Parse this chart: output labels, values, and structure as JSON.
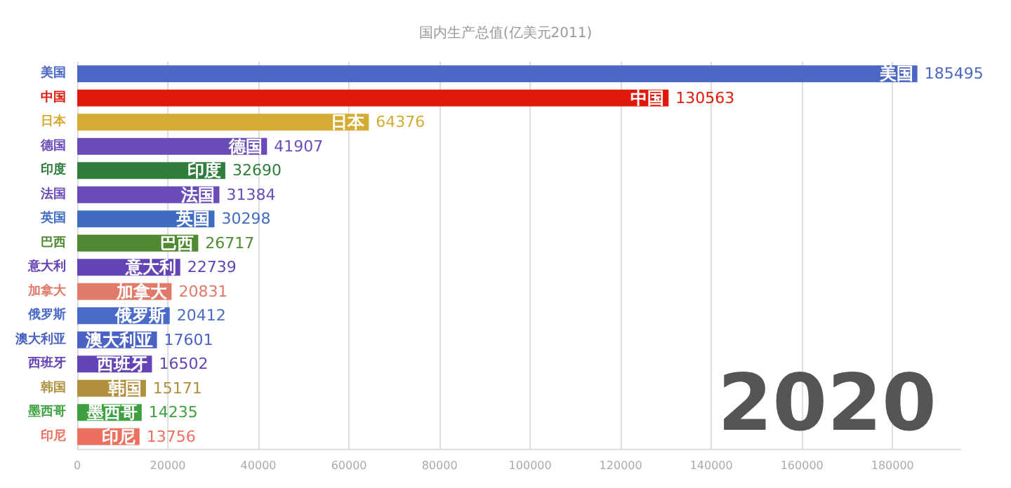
{
  "chart_data": {
    "type": "bar",
    "orientation": "horizontal",
    "title": "国内生产总值(亿美元2011)",
    "categories": [
      "美国",
      "中国",
      "日本",
      "德国",
      "印度",
      "法国",
      "英国",
      "巴西",
      "意大利",
      "加拿大",
      "俄罗斯",
      "澳大利亚",
      "西班牙",
      "韩国",
      "墨西哥",
      "印尼"
    ],
    "values": [
      185495,
      130563,
      64376,
      41907,
      32690,
      31384,
      30298,
      26717,
      22739,
      20831,
      20412,
      17601,
      16502,
      15171,
      14235,
      13756
    ],
    "colors": [
      "#4a67c4",
      "#e01a0a",
      "#d4ac34",
      "#6a4cb8",
      "#2f7d3a",
      "#6a4cb8",
      "#3f6bc0",
      "#4f8a32",
      "#6444b4",
      "#e07a6a",
      "#4a6ac8",
      "#4a62c4",
      "#6444b4",
      "#b0903c",
      "#3ea040",
      "#ec7060"
    ],
    "xlim": [
      0,
      195000
    ],
    "xticks": [
      0,
      20000,
      40000,
      60000,
      80000,
      100000,
      120000,
      140000,
      160000,
      180000
    ],
    "grid": "x",
    "data_labels": true,
    "annotations": [
      "2020"
    ]
  }
}
